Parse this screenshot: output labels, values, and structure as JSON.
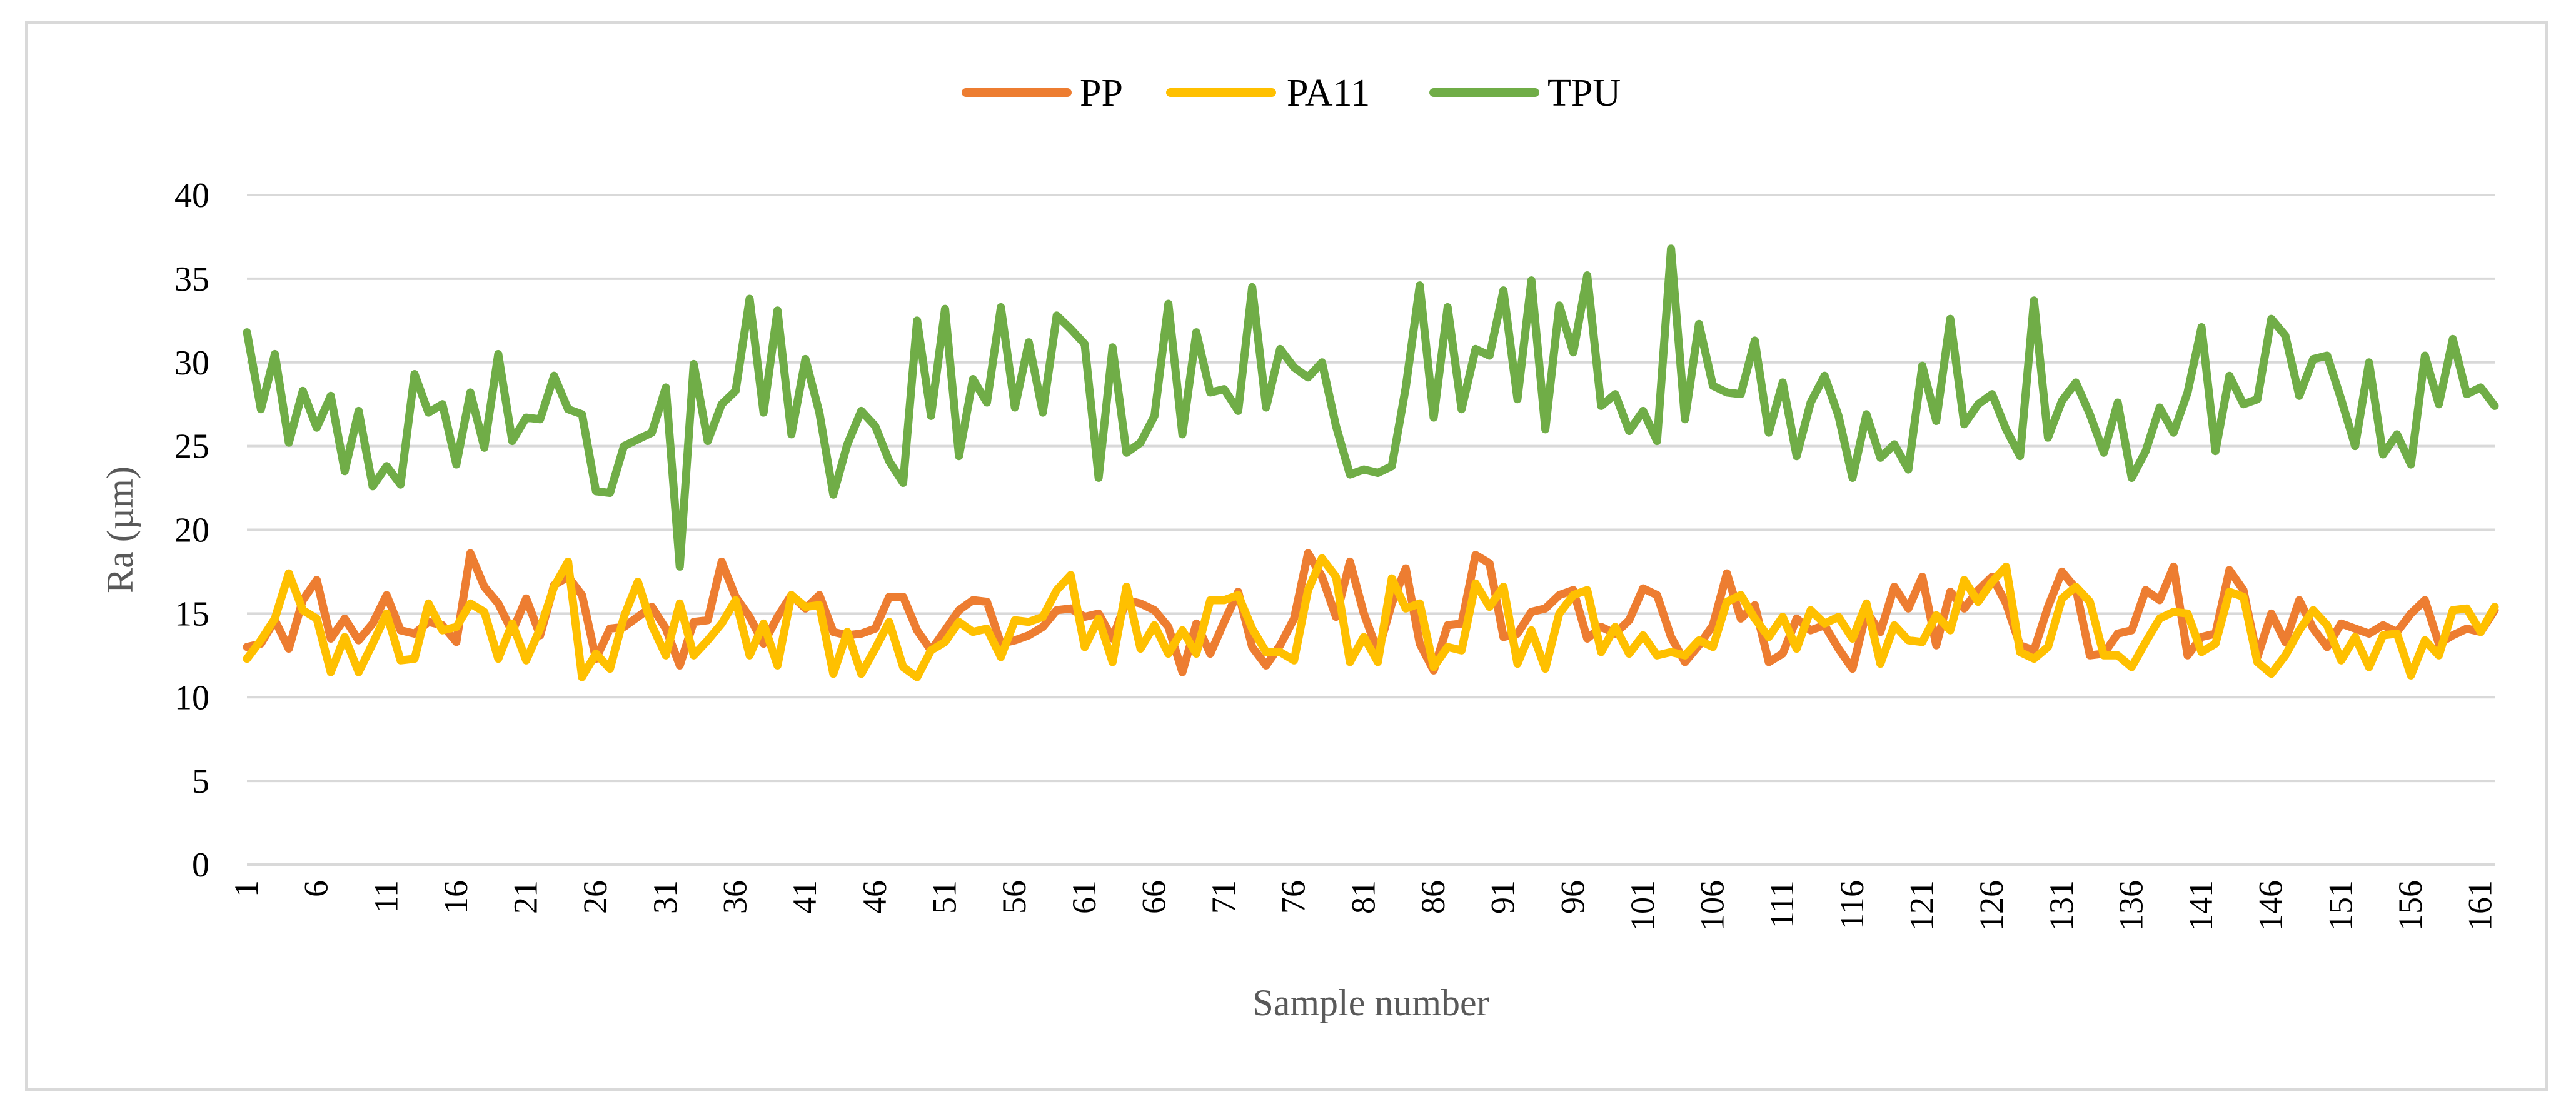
{
  "chart_data": {
    "type": "line",
    "title": "",
    "xlabel": "Sample number",
    "ylabel": "Ra (µm)",
    "ylim": [
      0,
      40
    ],
    "yticks": [
      0,
      5,
      10,
      15,
      20,
      25,
      30,
      35,
      40
    ],
    "xlim": [
      1,
      162
    ],
    "xtick_labels": [
      1,
      6,
      11,
      16,
      21,
      26,
      31,
      36,
      41,
      46,
      51,
      56,
      61,
      66,
      71,
      76,
      81,
      86,
      91,
      96,
      101,
      106,
      111,
      116,
      121,
      126,
      131,
      136,
      141,
      146,
      151,
      156,
      161
    ],
    "grid": true,
    "legend_position": "top",
    "series": [
      {
        "name": "PP",
        "color": "#ed7d31",
        "values": [
          13.0,
          13.2,
          14.6,
          12.9,
          15.8,
          17.0,
          13.5,
          14.7,
          13.4,
          14.4,
          16.1,
          14.0,
          13.8,
          14.5,
          14.3,
          13.3,
          18.6,
          16.6,
          15.6,
          13.9,
          15.9,
          13.7,
          16.7,
          17.2,
          16.1,
          12.3,
          14.1,
          14.2,
          14.8,
          15.4,
          14.1,
          11.9,
          14.5,
          14.6,
          18.1,
          16.0,
          14.8,
          13.2,
          14.8,
          16.1,
          15.3,
          16.1,
          13.9,
          13.7,
          13.8,
          14.1,
          16.0,
          16.0,
          14.0,
          12.8,
          14.0,
          15.2,
          15.8,
          15.7,
          13.2,
          13.4,
          13.7,
          14.2,
          15.2,
          15.3,
          14.8,
          15.0,
          13.5,
          15.8,
          15.6,
          15.2,
          14.2,
          11.5,
          14.4,
          12.6,
          14.5,
          16.3,
          13.0,
          11.9,
          13.1,
          14.7,
          18.6,
          17.2,
          14.8,
          18.1,
          15.0,
          12.7,
          15.6,
          17.7,
          13.2,
          11.6,
          14.3,
          14.4,
          18.5,
          18.0,
          13.6,
          13.8,
          15.1,
          15.3,
          16.1,
          16.4,
          13.5,
          14.2,
          13.8,
          14.6,
          16.5,
          16.1,
          13.6,
          12.1,
          13.1,
          14.3,
          17.4,
          14.7,
          15.5,
          12.1,
          12.6,
          14.7,
          14.0,
          14.3,
          12.9,
          11.7,
          15.1,
          13.9,
          16.6,
          15.3,
          17.2,
          13.1,
          16.3,
          15.3,
          16.4,
          17.2,
          15.6,
          13.1,
          12.8,
          15.4,
          17.5,
          16.5,
          12.5,
          12.6,
          13.8,
          14.0,
          16.4,
          15.8,
          17.8,
          12.5,
          13.6,
          13.8,
          17.6,
          16.4,
          12.4,
          15.0,
          13.3,
          15.8,
          14.1,
          13.0,
          14.4,
          14.1,
          13.8,
          14.3,
          13.9,
          15.0,
          15.8,
          13.2,
          13.7,
          14.1,
          13.9,
          15.2
        ]
      },
      {
        "name": "PA11",
        "color": "#ffc000",
        "values": [
          12.3,
          13.4,
          14.7,
          17.4,
          15.2,
          14.7,
          11.5,
          13.6,
          11.5,
          13.2,
          15.0,
          12.2,
          12.3,
          15.6,
          14.0,
          14.2,
          15.6,
          15.1,
          12.3,
          14.4,
          12.2,
          14.1,
          16.6,
          18.1,
          11.2,
          12.6,
          11.7,
          14.8,
          16.9,
          14.3,
          12.5,
          15.6,
          12.5,
          13.4,
          14.4,
          15.8,
          12.5,
          14.4,
          11.9,
          16.1,
          15.4,
          15.5,
          11.4,
          13.9,
          11.4,
          12.9,
          14.5,
          11.8,
          11.2,
          12.8,
          13.3,
          14.5,
          13.9,
          14.1,
          12.4,
          14.6,
          14.5,
          14.8,
          16.4,
          17.3,
          13.0,
          14.7,
          12.1,
          16.6,
          12.9,
          14.3,
          12.6,
          14.0,
          12.6,
          15.8,
          15.8,
          16.1,
          14.1,
          12.7,
          12.7,
          12.2,
          16.4,
          18.3,
          17.2,
          12.1,
          13.6,
          12.1,
          17.1,
          15.3,
          15.6,
          11.8,
          13.0,
          12.8,
          16.8,
          15.4,
          16.6,
          12.0,
          14.0,
          11.7,
          15.0,
          16.1,
          16.4,
          12.7,
          14.2,
          12.6,
          13.7,
          12.5,
          12.7,
          12.5,
          13.4,
          13.0,
          15.7,
          16.1,
          14.7,
          13.6,
          14.8,
          12.9,
          15.2,
          14.4,
          14.8,
          13.5,
          15.6,
          12.0,
          14.3,
          13.4,
          13.3,
          14.9,
          14.0,
          17.0,
          15.7,
          16.9,
          17.8,
          12.7,
          12.3,
          13.0,
          15.9,
          16.6,
          15.7,
          12.5,
          12.5,
          11.8,
          13.3,
          14.7,
          15.1,
          15.0,
          12.7,
          13.2,
          16.3,
          16.0,
          12.1,
          11.4,
          12.5,
          14.0,
          15.2,
          14.3,
          12.2,
          13.6,
          11.8,
          13.7,
          13.8,
          11.3,
          13.4,
          12.5,
          15.2,
          15.3,
          13.9,
          15.4
        ]
      },
      {
        "name": "TPU",
        "color": "#70ad47",
        "values": [
          31.8,
          27.2,
          30.5,
          25.2,
          28.3,
          26.1,
          28.0,
          23.5,
          27.1,
          22.6,
          23.8,
          22.7,
          29.3,
          27.0,
          27.5,
          23.9,
          28.2,
          24.9,
          30.5,
          25.3,
          26.7,
          26.6,
          29.2,
          27.2,
          26.9,
          22.3,
          22.2,
          25.0,
          25.4,
          25.8,
          28.5,
          17.8,
          29.9,
          25.3,
          27.5,
          28.3,
          33.8,
          27.0,
          33.1,
          25.7,
          30.2,
          27.0,
          22.1,
          25.1,
          27.1,
          26.2,
          24.1,
          22.8,
          32.5,
          26.8,
          33.2,
          24.4,
          29.0,
          27.6,
          33.3,
          27.3,
          31.2,
          27.0,
          32.8,
          32.0,
          31.1,
          23.1,
          30.9,
          24.6,
          25.2,
          26.8,
          33.5,
          25.7,
          31.8,
          28.2,
          28.4,
          27.1,
          34.5,
          27.3,
          30.8,
          29.7,
          29.1,
          30.0,
          26.2,
          23.3,
          23.6,
          23.4,
          23.8,
          28.5,
          34.6,
          26.7,
          33.3,
          27.2,
          30.8,
          30.4,
          34.3,
          27.8,
          34.9,
          26.0,
          33.4,
          30.6,
          35.2,
          27.4,
          28.1,
          25.9,
          27.1,
          25.3,
          36.8,
          26.6,
          32.3,
          28.6,
          28.2,
          28.1,
          31.3,
          25.8,
          28.8,
          24.4,
          27.6,
          29.2,
          26.8,
          23.1,
          26.9,
          24.3,
          25.1,
          23.6,
          29.8,
          26.5,
          32.6,
          26.3,
          27.5,
          28.1,
          26.0,
          24.4,
          33.7,
          25.5,
          27.7,
          28.8,
          26.9,
          24.6,
          27.6,
          23.1,
          24.7,
          27.3,
          25.8,
          28.2,
          32.1,
          24.7,
          29.2,
          27.5,
          27.8,
          32.6,
          31.6,
          28.0,
          30.2,
          30.4,
          27.8,
          25.0,
          30.0,
          24.5,
          25.7,
          23.9,
          30.4,
          27.5,
          31.4,
          28.1,
          28.5,
          27.4
        ]
      }
    ]
  }
}
